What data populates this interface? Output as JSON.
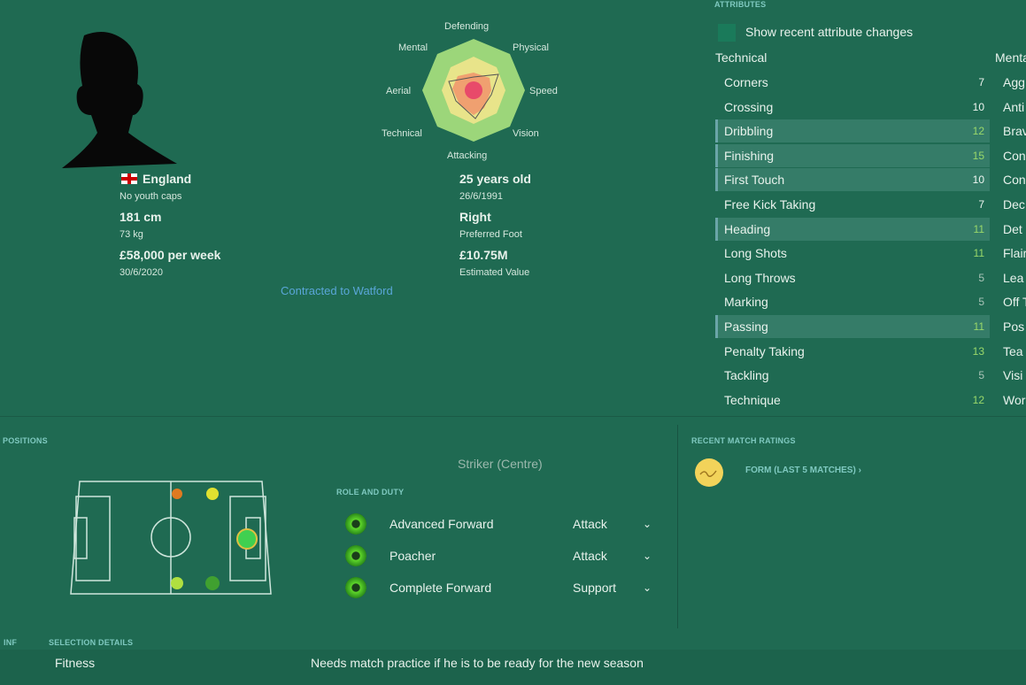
{
  "player": {
    "nationality": "England",
    "youth_caps": "No youth caps",
    "height": "181 cm",
    "weight": "73 kg",
    "wage": "£58,000 per week",
    "contract_end": "30/6/2020",
    "age": "25 years old",
    "dob": "26/6/1991",
    "foot": "Right",
    "foot_label": "Preferred Foot",
    "value": "£10.75M",
    "value_label": "Estimated Value",
    "contract": "Contracted to Watford"
  },
  "radar": {
    "labels": [
      "Defending",
      "Physical",
      "Speed",
      "Vision",
      "Attacking",
      "Technical",
      "Aerial",
      "Mental"
    ]
  },
  "attributes": {
    "header": "Attributes",
    "show_changes": "Show recent attribute changes",
    "technical_title": "Technical",
    "mental_title": "Mental",
    "technical": [
      {
        "name": "Corners",
        "value": "7",
        "hl": false
      },
      {
        "name": "Crossing",
        "value": "10",
        "hl": false
      },
      {
        "name": "Dribbling",
        "value": "12",
        "hl": true
      },
      {
        "name": "Finishing",
        "value": "15",
        "hl": true
      },
      {
        "name": "First Touch",
        "value": "10",
        "hl": true
      },
      {
        "name": "Free Kick Taking",
        "value": "7",
        "hl": false
      },
      {
        "name": "Heading",
        "value": "11",
        "hl": true
      },
      {
        "name": "Long Shots",
        "value": "11",
        "hl": false
      },
      {
        "name": "Long Throws",
        "value": "5",
        "hl": false
      },
      {
        "name": "Marking",
        "value": "5",
        "hl": false
      },
      {
        "name": "Passing",
        "value": "11",
        "hl": true
      },
      {
        "name": "Penalty Taking",
        "value": "13",
        "hl": false
      },
      {
        "name": "Tackling",
        "value": "5",
        "hl": false
      },
      {
        "name": "Technique",
        "value": "12",
        "hl": false
      }
    ],
    "mental": [
      "Agg",
      "Anti",
      "Brav",
      "Con",
      "Con",
      "Dec",
      "Det",
      "Flair",
      "Lea",
      "Off T",
      "Pos",
      "Tea",
      "Visi",
      "Wor"
    ]
  },
  "positions": {
    "header": "Positions",
    "selected": "Striker (Centre)",
    "role_header": "Role and Duty",
    "roles": [
      {
        "name": "Advanced Forward",
        "duty": "Attack"
      },
      {
        "name": "Poacher",
        "duty": "Attack"
      },
      {
        "name": "Complete Forward",
        "duty": "Support"
      }
    ]
  },
  "ratings": {
    "header": "Recent Match Ratings",
    "form": "FORM (LAST 5 MATCHES) ›"
  },
  "selection": {
    "tab_inf": "INF",
    "header": "Selection Details",
    "label": "Fitness",
    "text": "Needs match practice if he is to be ready for the new season"
  }
}
